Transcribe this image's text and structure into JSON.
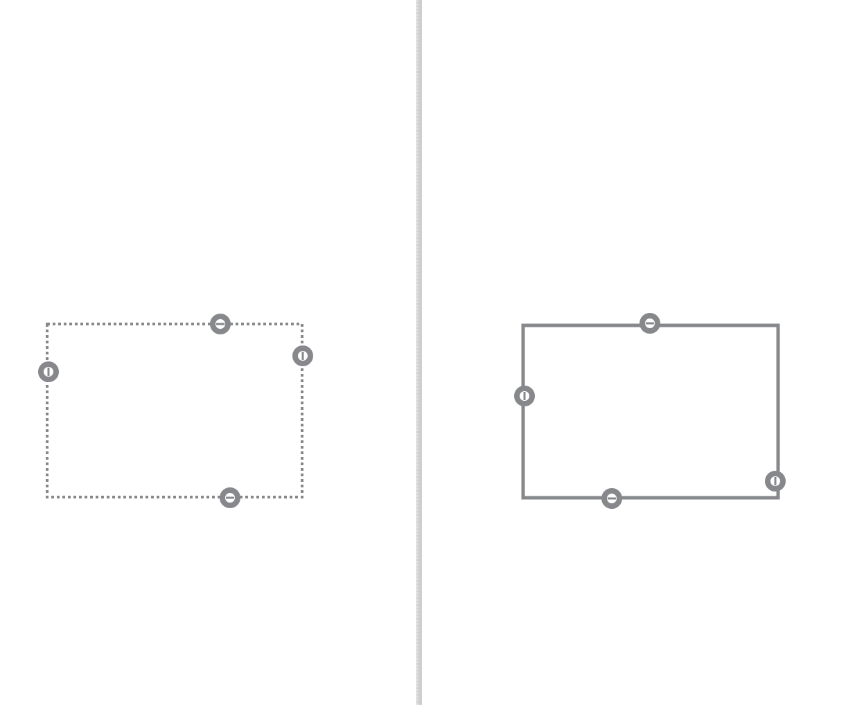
{
  "panels": [
    {
      "name": "left-panel",
      "rectangle": {
        "border_style": "dotted"
      },
      "handles": [
        {
          "edge": "top"
        },
        {
          "edge": "right"
        },
        {
          "edge": "left"
        },
        {
          "edge": "bottom"
        }
      ]
    },
    {
      "name": "right-panel",
      "rectangle": {
        "border_style": "solid"
      },
      "handles": [
        {
          "edge": "top"
        },
        {
          "edge": "left"
        },
        {
          "edge": "right"
        },
        {
          "edge": "bottom"
        }
      ]
    }
  ],
  "divider": {
    "style": "rough-vertical"
  },
  "colors": {
    "stroke": "#87888c",
    "divider": "#cfcfcf",
    "background": "#ffffff"
  }
}
